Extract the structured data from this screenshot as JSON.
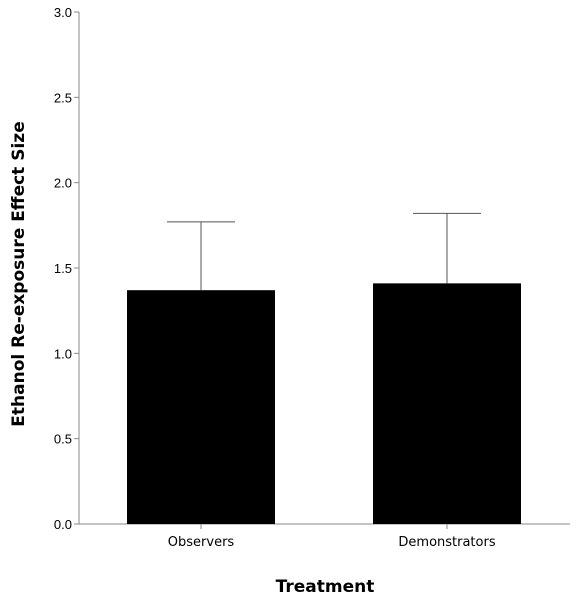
{
  "chart_data": {
    "type": "bar",
    "title": "",
    "xlabel": "Treatment",
    "ylabel": "Ethanol Re-exposure Effect Size",
    "categories": [
      "Observers",
      "Demonstrators"
    ],
    "values": [
      1.37,
      1.41
    ],
    "error_upper": [
      1.77,
      1.82
    ],
    "ylim": [
      0,
      3.0
    ],
    "yticks": [
      0.0,
      0.5,
      1.0,
      1.5,
      2.0,
      2.5,
      3.0
    ],
    "ytick_labels": [
      "0.0",
      "0.5",
      "1.0",
      "1.5",
      "2.0",
      "2.5",
      "3.0"
    ],
    "grid": false,
    "legend": "none",
    "bar_color": "#000000",
    "axis_color": "#888888"
  }
}
